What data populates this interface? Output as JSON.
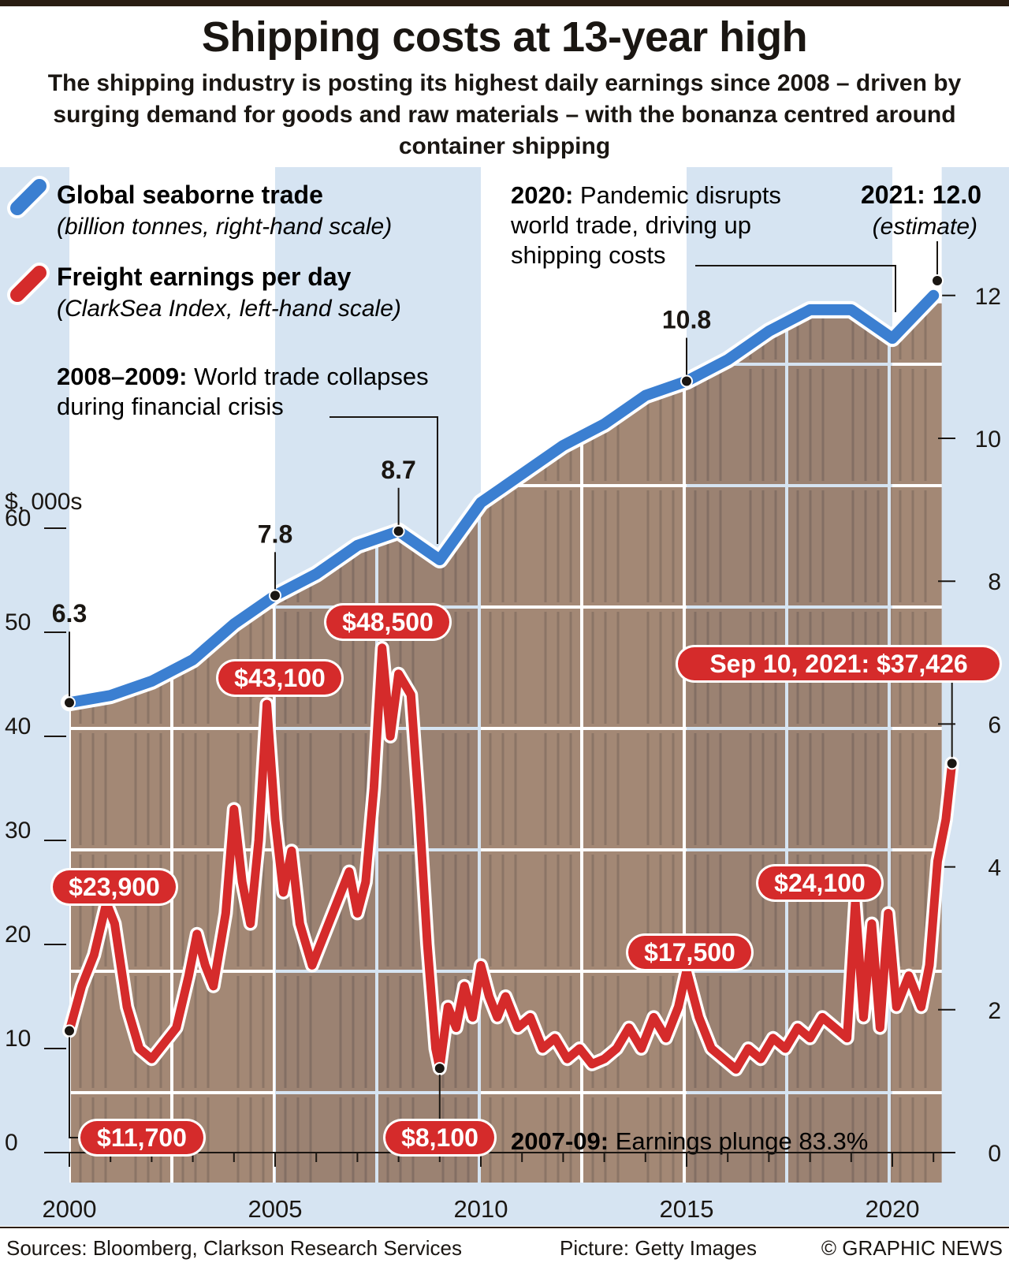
{
  "title": "Shipping costs at 13-year high",
  "subtitle": "The shipping industry is posting its highest daily earnings since 2008 – driven by surging demand for goods and raw materials – with the bonanza centred around container shipping",
  "colors": {
    "background": "#d6e4f2",
    "trade_line": "#3b7fd1",
    "freight_line": "#d52b2b",
    "highlight_band": "#ffffff",
    "text": "#1a1612"
  },
  "legend": {
    "trade": {
      "name": "Global seaborne trade",
      "note": "(billion tonnes, right-hand scale)"
    },
    "freight": {
      "name": "Freight earnings per day",
      "note": "(ClarkSea Index, left-hand scale)"
    }
  },
  "annotations": {
    "a2008": {
      "bold": "2008–2009:",
      "line1": "World trade collapses",
      "line2": "during financial crisis"
    },
    "a2020": {
      "bold": "2020:",
      "line1": "Pandemic disrupts",
      "line2": "world trade, driving up",
      "line3": "shipping costs"
    },
    "a2021": {
      "bold": "2021: 12.0",
      "note": "(estimate)"
    },
    "a2007": {
      "bold": "2007-09:",
      "text": "Earnings plunge 83.3%"
    }
  },
  "chart_data": {
    "type": "line",
    "x_ticks": [
      "2000",
      "2005",
      "2010",
      "2015",
      "2020"
    ],
    "left_axis": {
      "unit": "$, 000s",
      "ticks": [
        "0",
        "10",
        "20",
        "30",
        "40",
        "50",
        "60"
      ],
      "range": [
        0,
        60
      ]
    },
    "right_axis": {
      "ticks": [
        "0",
        "2",
        "4",
        "6",
        "8",
        "10",
        "12"
      ],
      "range": [
        0,
        12
      ]
    },
    "series": [
      {
        "name": "Global seaborne trade",
        "axis": "right",
        "points": [
          [
            2000,
            6.3
          ],
          [
            2001,
            6.4
          ],
          [
            2002,
            6.6
          ],
          [
            2003,
            6.9
          ],
          [
            2004,
            7.4
          ],
          [
            2005,
            7.8
          ],
          [
            2006,
            8.1
          ],
          [
            2007,
            8.5
          ],
          [
            2008,
            8.7
          ],
          [
            2009,
            8.3
          ],
          [
            2010,
            9.1
          ],
          [
            2011,
            9.5
          ],
          [
            2012,
            9.9
          ],
          [
            2013,
            10.2
          ],
          [
            2014,
            10.6
          ],
          [
            2015,
            10.8
          ],
          [
            2016,
            11.1
          ],
          [
            2017,
            11.5
          ],
          [
            2018,
            11.8
          ],
          [
            2019,
            11.8
          ],
          [
            2020,
            11.4
          ],
          [
            2021,
            12.0
          ]
        ],
        "labels": [
          {
            "x": 2000,
            "y": 6.3,
            "text": "6.3"
          },
          {
            "x": 2005,
            "y": 7.8,
            "text": "7.8"
          },
          {
            "x": 2008,
            "y": 8.7,
            "text": "8.7"
          },
          {
            "x": 2015,
            "y": 10.8,
            "text": "10.8"
          }
        ]
      },
      {
        "name": "Freight earnings per day",
        "axis": "left",
        "points": [
          [
            2000.0,
            11.7
          ],
          [
            2000.3,
            16
          ],
          [
            2000.6,
            19
          ],
          [
            2000.9,
            24
          ],
          [
            2001.1,
            22
          ],
          [
            2001.4,
            14
          ],
          [
            2001.7,
            10
          ],
          [
            2002.0,
            9
          ],
          [
            2002.3,
            10.5
          ],
          [
            2002.6,
            12
          ],
          [
            2002.9,
            17
          ],
          [
            2003.1,
            21
          ],
          [
            2003.3,
            18
          ],
          [
            2003.5,
            16
          ],
          [
            2003.8,
            23
          ],
          [
            2004.0,
            33
          ],
          [
            2004.2,
            26
          ],
          [
            2004.4,
            22
          ],
          [
            2004.6,
            30
          ],
          [
            2004.8,
            43.1
          ],
          [
            2005.0,
            32
          ],
          [
            2005.2,
            25
          ],
          [
            2005.4,
            29
          ],
          [
            2005.6,
            22
          ],
          [
            2005.9,
            18
          ],
          [
            2006.2,
            21
          ],
          [
            2006.5,
            24
          ],
          [
            2006.8,
            27
          ],
          [
            2007.0,
            23
          ],
          [
            2007.2,
            26
          ],
          [
            2007.4,
            35
          ],
          [
            2007.6,
            48.5
          ],
          [
            2007.8,
            40
          ],
          [
            2008.0,
            46
          ],
          [
            2008.3,
            44
          ],
          [
            2008.5,
            33
          ],
          [
            2008.7,
            20
          ],
          [
            2008.9,
            10
          ],
          [
            2009.0,
            8.1
          ],
          [
            2009.2,
            14
          ],
          [
            2009.4,
            12
          ],
          [
            2009.6,
            16
          ],
          [
            2009.8,
            13
          ],
          [
            2010.0,
            18
          ],
          [
            2010.2,
            15
          ],
          [
            2010.4,
            13
          ],
          [
            2010.6,
            15
          ],
          [
            2010.9,
            12
          ],
          [
            2011.2,
            13
          ],
          [
            2011.5,
            10
          ],
          [
            2011.8,
            11
          ],
          [
            2012.1,
            9
          ],
          [
            2012.4,
            10
          ],
          [
            2012.7,
            8.5
          ],
          [
            2013.0,
            9
          ],
          [
            2013.3,
            10
          ],
          [
            2013.6,
            12
          ],
          [
            2013.9,
            10
          ],
          [
            2014.2,
            13
          ],
          [
            2014.5,
            11
          ],
          [
            2014.8,
            14
          ],
          [
            2015.0,
            17.5
          ],
          [
            2015.3,
            13
          ],
          [
            2015.6,
            10
          ],
          [
            2015.9,
            9
          ],
          [
            2016.2,
            8
          ],
          [
            2016.5,
            10
          ],
          [
            2016.8,
            9
          ],
          [
            2017.1,
            11
          ],
          [
            2017.4,
            10
          ],
          [
            2017.7,
            12
          ],
          [
            2018.0,
            11
          ],
          [
            2018.3,
            13
          ],
          [
            2018.6,
            12
          ],
          [
            2018.9,
            11
          ],
          [
            2019.1,
            24.1
          ],
          [
            2019.3,
            13
          ],
          [
            2019.5,
            22
          ],
          [
            2019.7,
            12
          ],
          [
            2019.9,
            23
          ],
          [
            2020.1,
            14
          ],
          [
            2020.4,
            17
          ],
          [
            2020.7,
            14
          ],
          [
            2020.9,
            18
          ],
          [
            2021.1,
            28
          ],
          [
            2021.3,
            32
          ],
          [
            2021.45,
            37.4
          ]
        ],
        "labels": [
          {
            "x": 2000.0,
            "y": 11.7,
            "text": "$11,700"
          },
          {
            "x": 2000.9,
            "y": 23.9,
            "text": "$23,900"
          },
          {
            "x": 2004.8,
            "y": 43.1,
            "text": "$43,100"
          },
          {
            "x": 2007.6,
            "y": 48.5,
            "text": "$48,500"
          },
          {
            "x": 2009.0,
            "y": 8.1,
            "text": "$8,100"
          },
          {
            "x": 2015.0,
            "y": 17.5,
            "text": "$17,500"
          },
          {
            "x": 2019.1,
            "y": 24.1,
            "text": "$24,100"
          },
          {
            "x": 2021.45,
            "y": 37.4,
            "text": "Sep 10, 2021: $37,426"
          }
        ]
      }
    ]
  },
  "footer": {
    "sources": "Sources: Bloomberg, Clarkson Research Services",
    "picture": "Picture: Getty Images",
    "credit": "© GRAPHIC NEWS"
  }
}
